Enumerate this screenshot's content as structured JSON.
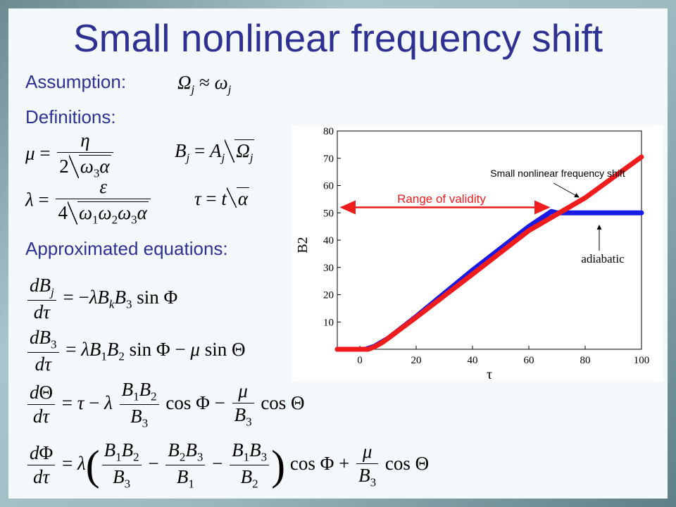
{
  "title": "Small nonlinear frequency shift",
  "labels": {
    "assumption": "Assumption:",
    "definitions": "Definitions:",
    "approximated": "Approximated equations:"
  },
  "colors": {
    "title": "#2e3192",
    "series_red": "#ee1c1c",
    "series_blue": "#1a1ae6"
  },
  "chart_data": {
    "type": "line",
    "xlabel": "τ",
    "ylabel": "B2",
    "xlim": [
      -8,
      100
    ],
    "ylim": [
      0,
      80
    ],
    "xticks": [
      "0",
      "20",
      "40",
      "60",
      "80",
      "100"
    ],
    "yticks": [
      "10",
      "20",
      "30",
      "40",
      "50",
      "60",
      "70",
      "80"
    ],
    "grid": false,
    "series": [
      {
        "x": [
          -8,
          2,
          5,
          10,
          20,
          40,
          60,
          68,
          70,
          75,
          80,
          100
        ],
        "y": [
          0,
          0,
          1,
          4,
          12,
          29,
          45,
          50.5,
          50,
          50,
          50,
          50
        ]
      },
      {
        "x": [
          -8,
          3,
          5,
          8,
          10,
          20,
          40,
          60,
          80,
          100
        ],
        "y": [
          0,
          0,
          0.8,
          2.5,
          4,
          11.7,
          27.5,
          43.5,
          55.5,
          70.5
        ]
      }
    ],
    "annotations": {
      "top": "Small nonlinear frequency shift",
      "range": "Range of validity",
      "adiabatic": "adiabatic"
    },
    "range_arrow": {
      "from": -8,
      "to": 67,
      "y": 52
    }
  }
}
